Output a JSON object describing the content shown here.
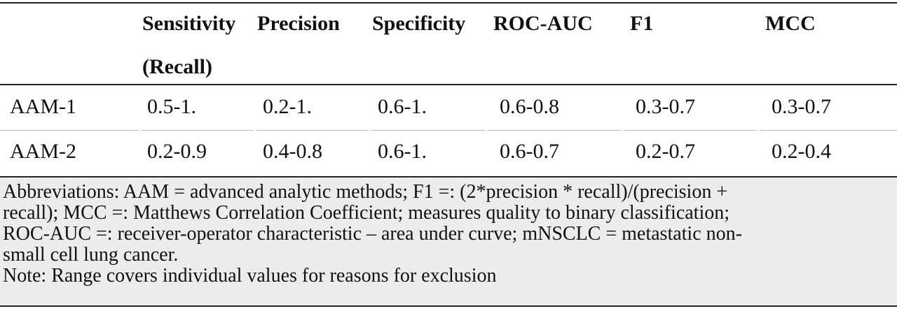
{
  "table": {
    "headers": [
      {
        "line1": "",
        "line2": ""
      },
      {
        "line1": "Sensitivity",
        "line2": "(Recall)"
      },
      {
        "line1": "Precision",
        "line2": ""
      },
      {
        "line1": "Specificity",
        "line2": ""
      },
      {
        "line1": "ROC-AUC",
        "line2": ""
      },
      {
        "line1": "F1",
        "line2": ""
      },
      {
        "line1": "MCC",
        "line2": ""
      }
    ],
    "rows": [
      [
        "AAM-1",
        "0.5-1.",
        "0.2-1.",
        "0.6-1.",
        "0.6-0.8",
        "0.3-0.7",
        "0.3-0.7"
      ],
      [
        "AAM-2",
        "0.2-0.9",
        "0.4-0.8",
        "0.6-1.",
        "0.6-0.7",
        "0.2-0.7",
        "0.2-0.4"
      ]
    ],
    "footnote_lines": [
      "Abbreviations: AAM = advanced analytic methods; F1 =: (2*precision * recall)/(precision +",
      "recall); MCC =: Matthews Correlation Coefficient; measures quality to binary classification;",
      "ROC-AUC =: receiver-operator characteristic – area under curve; mNSCLC = metastatic non-",
      "small cell lung cancer.",
      "Note: Range covers individual values for reasons for exclusion"
    ]
  }
}
